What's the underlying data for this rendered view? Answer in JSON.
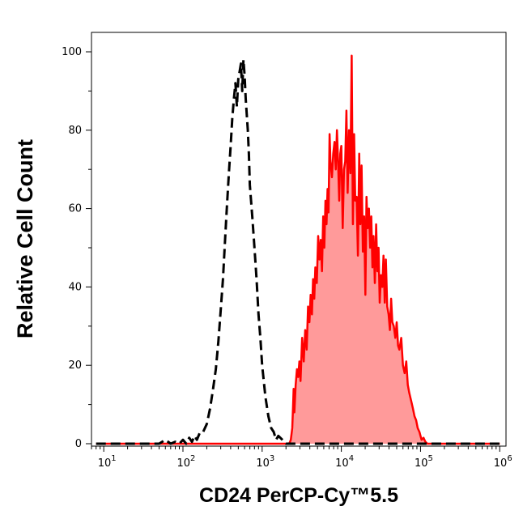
{
  "chart_data": {
    "type": "area",
    "xlabel": "CD24 PerCP-Cy™5.5",
    "ylabel": "Relative Cell Count",
    "x_scale": "log",
    "xlim": [
      7,
      1200000
    ],
    "ylim": [
      0,
      105
    ],
    "x_ticks": [
      {
        "value": 10,
        "base": "10",
        "exp": "1"
      },
      {
        "value": 100,
        "base": "10",
        "exp": "2"
      },
      {
        "value": 1000,
        "base": "10",
        "exp": "3"
      },
      {
        "value": 10000,
        "base": "10",
        "exp": "4"
      },
      {
        "value": 100000,
        "base": "10",
        "exp": "5"
      },
      {
        "value": 1000000,
        "base": "10",
        "exp": "6"
      }
    ],
    "y_ticks": [
      {
        "value": 0,
        "label": "0"
      },
      {
        "value": 20,
        "label": "20"
      },
      {
        "value": 40,
        "label": "40"
      },
      {
        "value": 60,
        "label": "60"
      },
      {
        "value": 80,
        "label": "80"
      },
      {
        "value": 100,
        "label": "100"
      }
    ],
    "grid": false,
    "legend": "none",
    "series": [
      {
        "style": "dashed",
        "color": "#000000",
        "fill": "none",
        "x": [
          8,
          50,
          60,
          70,
          80,
          90,
          100,
          110,
          120,
          130,
          140,
          150,
          165,
          180,
          200,
          220,
          240,
          260,
          280,
          300,
          320,
          340,
          360,
          380,
          400,
          420,
          440,
          460,
          480,
          500,
          520,
          540,
          560,
          580,
          600,
          620,
          640,
          660,
          680,
          700,
          750,
          800,
          850,
          900,
          950,
          1000,
          1100,
          1200,
          1300,
          1400,
          1500,
          1600,
          1800,
          2000,
          2500,
          3000,
          10000,
          1000000
        ],
        "y": [
          0,
          0,
          1,
          0,
          0.5,
          0,
          1,
          0,
          1.5,
          0.5,
          2,
          1,
          3,
          3,
          5,
          9,
          14,
          19,
          26,
          34,
          42,
          52,
          61,
          69,
          76,
          83,
          88,
          92,
          86,
          93,
          95,
          97,
          90,
          98,
          94,
          88,
          84,
          80,
          74,
          66,
          58,
          50,
          42,
          33,
          27,
          20,
          12,
          7,
          4,
          3,
          1,
          2,
          1,
          0,
          0,
          0,
          0,
          0
        ]
      },
      {
        "style": "solid",
        "color": "#ff0000",
        "fill": "#ff9a9a",
        "x": [
          8,
          2200,
          2300,
          2400,
          2450,
          2500,
          2550,
          2650,
          2750,
          2850,
          2950,
          3050,
          3200,
          3350,
          3500,
          3650,
          3800,
          3950,
          4100,
          4250,
          4400,
          4550,
          4700,
          4900,
          5100,
          5300,
          5500,
          5700,
          5900,
          6100,
          6300,
          6500,
          6700,
          6900,
          7100,
          7300,
          7600,
          7900,
          8200,
          8500,
          8800,
          9100,
          9400,
          9700,
          10000,
          10400,
          10800,
          11200,
          11600,
          12000,
          12500,
          13000,
          13500,
          14000,
          14500,
          15000,
          15600,
          16200,
          16800,
          17400,
          18000,
          18700,
          19400,
          20100,
          20800,
          21500,
          22300,
          23100,
          23900,
          24700,
          25500,
          26500,
          27500,
          28500,
          29500,
          30500,
          31700,
          32900,
          34100,
          35300,
          36500,
          38000,
          39500,
          41000,
          42500,
          44000,
          46000,
          48000,
          50000,
          52000,
          54000,
          57000,
          60000,
          63000,
          66000,
          69000,
          72000,
          76000,
          80000,
          84000,
          88000,
          92000,
          97000,
          103000,
          109000,
          115000,
          122000,
          130000,
          140000,
          160000,
          1000000
        ],
        "y": [
          0,
          0,
          1,
          4,
          9,
          14,
          8,
          15,
          19,
          17,
          21,
          16,
          27,
          21,
          29,
          24,
          35,
          31,
          38,
          33,
          42,
          37,
          45,
          41,
          53,
          47,
          52,
          44,
          58,
          50,
          62,
          56,
          65,
          59,
          79,
          72,
          68,
          74,
          77,
          70,
          80,
          72,
          62,
          74,
          76,
          55,
          70,
          72,
          85,
          64,
          80,
          69,
          99,
          56,
          79,
          62,
          63,
          48,
          74,
          56,
          71,
          49,
          58,
          38,
          63,
          55,
          60,
          50,
          58,
          45,
          53,
          41,
          56,
          44,
          50,
          36,
          43,
          40,
          48,
          36,
          47,
          35,
          33,
          29,
          37,
          31,
          30,
          27,
          31,
          25,
          24,
          27,
          20,
          18,
          21,
          15,
          13,
          11,
          9,
          7,
          6,
          4,
          3,
          1,
          1.5,
          0.5,
          0,
          0,
          0,
          0,
          0
        ]
      }
    ]
  }
}
